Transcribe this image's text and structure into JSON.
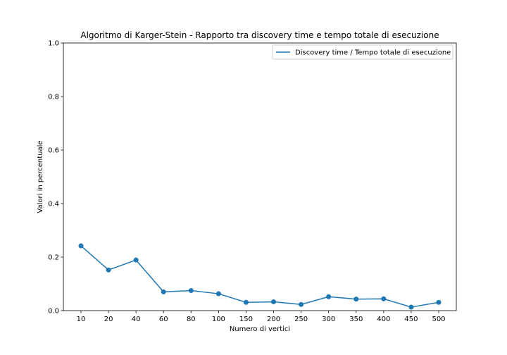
{
  "chart_data": {
    "type": "line",
    "title": "Algoritmo di Karger-Stein - Rapporto tra discovery time e tempo totale di esecuzione",
    "xlabel": "Numero di vertici",
    "ylabel": "Valori in percentuale",
    "categories": [
      "10",
      "20",
      "40",
      "60",
      "80",
      "100",
      "150",
      "200",
      "250",
      "300",
      "350",
      "400",
      "450",
      "500"
    ],
    "series": [
      {
        "name": "Discovery time / Tempo totale di esecuzione",
        "values": [
          0.242,
          0.152,
          0.189,
          0.07,
          0.075,
          0.063,
          0.031,
          0.033,
          0.023,
          0.052,
          0.043,
          0.044,
          0.013,
          0.031
        ],
        "color": "#1f77b4",
        "marker": "circle"
      }
    ],
    "ylim": [
      0,
      1
    ],
    "yticks": [
      "0.0",
      "0.2",
      "0.4",
      "0.6",
      "0.8",
      "1.0"
    ],
    "grid": false,
    "legend_position": "top-right"
  }
}
